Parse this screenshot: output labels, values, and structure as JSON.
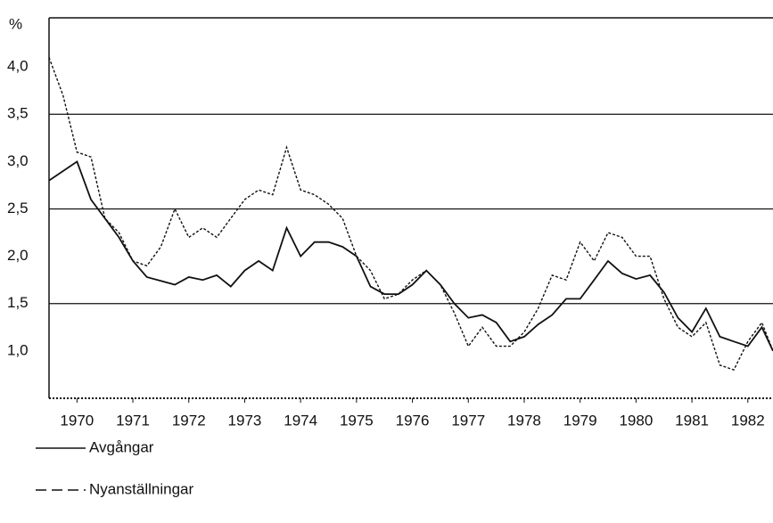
{
  "chart_data": {
    "type": "line",
    "y_label": "%",
    "x": [
      1969.5,
      1969.75,
      1970,
      1970.25,
      1970.5,
      1970.75,
      1971,
      1971.25,
      1971.5,
      1971.75,
      1972,
      1972.25,
      1972.5,
      1972.75,
      1973,
      1973.25,
      1973.5,
      1973.75,
      1974,
      1974.25,
      1974.5,
      1974.75,
      1975,
      1975.25,
      1975.5,
      1975.75,
      1976,
      1976.25,
      1976.5,
      1976.75,
      1977,
      1977.25,
      1977.5,
      1977.75,
      1978,
      1978.25,
      1978.5,
      1978.75,
      1979,
      1979.25,
      1979.5,
      1979.75,
      1980,
      1980.25,
      1980.5,
      1980.75,
      1981,
      1981.25,
      1981.5,
      1981.75,
      1982,
      1982.25,
      1982.45
    ],
    "series": [
      {
        "name": "Avgångar",
        "color": "#111111",
        "dash": false,
        "values": [
          2.8,
          2.9,
          3.0,
          2.6,
          2.4,
          2.2,
          1.95,
          1.78,
          1.74,
          1.7,
          1.78,
          1.75,
          1.8,
          1.68,
          1.85,
          1.95,
          1.85,
          2.3,
          2.0,
          2.15,
          2.15,
          2.1,
          2.0,
          1.68,
          1.6,
          1.6,
          1.7,
          1.85,
          1.7,
          1.5,
          1.35,
          1.38,
          1.3,
          1.1,
          1.15,
          1.28,
          1.38,
          1.55,
          1.55,
          1.75,
          1.95,
          1.82,
          1.76,
          1.8,
          1.62,
          1.35,
          1.2,
          1.45,
          1.15,
          1.1,
          1.05,
          1.25,
          1.0
        ]
      },
      {
        "name": "Nyanställningar",
        "color": "#111111",
        "dash": true,
        "values": [
          4.1,
          3.7,
          3.1,
          3.05,
          2.4,
          2.25,
          1.95,
          1.9,
          2.1,
          2.5,
          2.2,
          2.3,
          2.2,
          2.4,
          2.6,
          2.7,
          2.65,
          3.15,
          2.7,
          2.65,
          2.55,
          2.4,
          2.0,
          1.85,
          1.55,
          1.6,
          1.75,
          1.85,
          1.7,
          1.4,
          1.05,
          1.25,
          1.05,
          1.05,
          1.2,
          1.45,
          1.8,
          1.75,
          2.15,
          1.95,
          2.25,
          2.2,
          2.0,
          2.0,
          1.55,
          1.25,
          1.15,
          1.3,
          0.85,
          0.8,
          1.1,
          1.3,
          1.0
        ]
      }
    ],
    "xlim": [
      1969.5,
      1982.45
    ],
    "xticks": [
      1970,
      1971,
      1972,
      1973,
      1974,
      1975,
      1976,
      1977,
      1978,
      1979,
      1980,
      1981,
      1982
    ],
    "ylim": [
      0.5,
      4.5
    ],
    "yticks": [
      {
        "value": 1,
        "label": "1,0"
      },
      {
        "value": 1.5,
        "label": "1,5"
      },
      {
        "value": 2,
        "label": "2,0"
      },
      {
        "value": 2.5,
        "label": "2,5"
      },
      {
        "value": 3,
        "label": "3,0"
      },
      {
        "value": 3.5,
        "label": "3,5"
      },
      {
        "value": 4,
        "label": "4,0"
      }
    ],
    "grid_values": [
      1.5,
      2.5,
      3.5
    ]
  }
}
